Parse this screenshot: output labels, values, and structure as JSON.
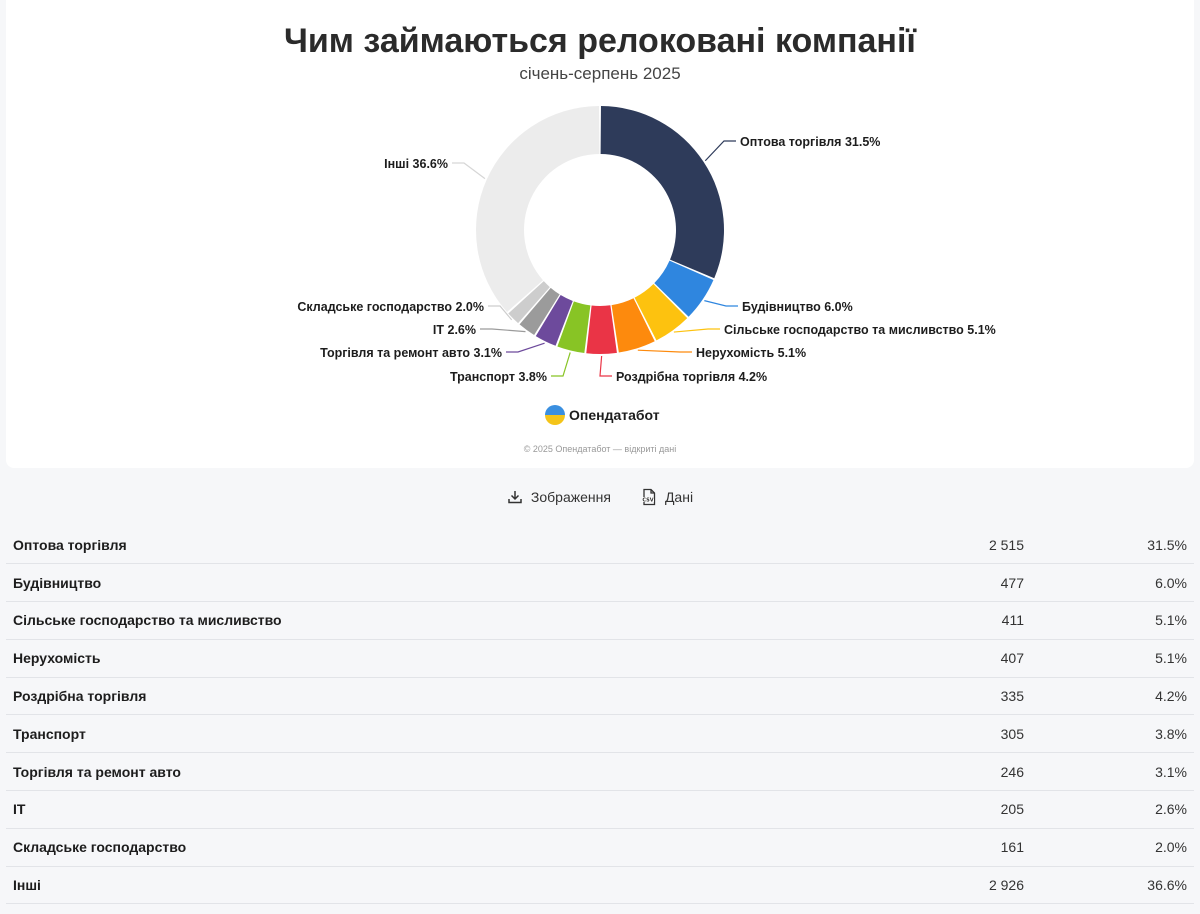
{
  "chart_data": {
    "type": "pie",
    "title": "Чим займаються релоковані компанії",
    "subtitle": "січень-серпень 2025",
    "donut": true,
    "slices": [
      {
        "label": "Оптова торгівля",
        "value": 2515,
        "percent": "31.5%",
        "color": "#2e3b5a"
      },
      {
        "label": "Будівництво",
        "value": 477,
        "percent": "6.0%",
        "color": "#2f86df"
      },
      {
        "label": "Сільське господарство та мисливство",
        "value": 411,
        "percent": "5.1%",
        "color": "#fdc20f"
      },
      {
        "label": "Нерухомість",
        "value": 407,
        "percent": "5.1%",
        "color": "#fd8a0d"
      },
      {
        "label": "Роздрібна торгівля",
        "value": 335,
        "percent": "4.2%",
        "color": "#ea3446"
      },
      {
        "label": "Транспорт",
        "value": 305,
        "percent": "3.8%",
        "color": "#88c425"
      },
      {
        "label": "Торгівля та ремонт авто",
        "value": 246,
        "percent": "3.1%",
        "color": "#6d4a9c"
      },
      {
        "label": "IT",
        "value": 205,
        "percent": "2.6%",
        "color": "#9b9b9b"
      },
      {
        "label": "Складське господарство",
        "value": 161,
        "percent": "2.0%",
        "color": "#cdcdcd"
      },
      {
        "label": "Інші",
        "value": 2926,
        "percent": "36.6%",
        "color": "#ececec"
      }
    ]
  },
  "branding": {
    "logo": "Опендатабот",
    "copyright": "© 2025 Опендатабот — відкриті дані"
  },
  "actions": {
    "image_label": "Зображення",
    "data_label": "Дані",
    "image_icon": "download-icon",
    "data_icon": "csv-file-icon"
  },
  "table": {
    "rows": [
      {
        "name": "Оптова торгівля",
        "count": "2 515",
        "percent": "31.5%"
      },
      {
        "name": "Будівництво",
        "count": "477",
        "percent": "6.0%"
      },
      {
        "name": "Сільське господарство та мисливство",
        "count": "411",
        "percent": "5.1%"
      },
      {
        "name": "Нерухомість",
        "count": "407",
        "percent": "5.1%"
      },
      {
        "name": "Роздрібна торгівля",
        "count": "335",
        "percent": "4.2%"
      },
      {
        "name": "Транспорт",
        "count": "305",
        "percent": "3.8%"
      },
      {
        "name": "Торгівля та ремонт авто",
        "count": "246",
        "percent": "3.1%"
      },
      {
        "name": "IT",
        "count": "205",
        "percent": "2.6%"
      },
      {
        "name": "Складське господарство",
        "count": "161",
        "percent": "2.0%"
      },
      {
        "name": "Інші",
        "count": "2 926",
        "percent": "36.6%"
      }
    ]
  }
}
